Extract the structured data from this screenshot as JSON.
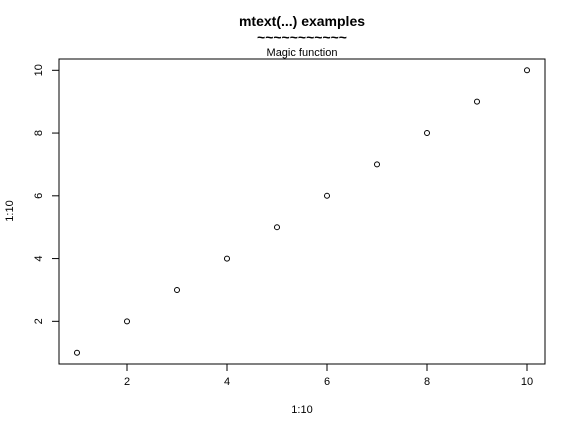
{
  "chart_data": {
    "type": "scatter",
    "title": "mtext(...) examples",
    "title_decoration": "~~~~~~~~~~~",
    "subtitle": "Magic function",
    "xlabel": "1:10",
    "ylabel": "1:10",
    "x": [
      1,
      2,
      3,
      4,
      5,
      6,
      7,
      8,
      9,
      10
    ],
    "y": [
      1,
      2,
      3,
      4,
      5,
      6,
      7,
      8,
      9,
      10
    ],
    "xlim": [
      0.64,
      10.36
    ],
    "ylim": [
      0.64,
      10.36
    ],
    "xticks": [
      "2",
      "4",
      "6",
      "8",
      "10"
    ],
    "yticks": [
      "2",
      "4",
      "6",
      "8",
      "10"
    ],
    "marker": "open-circle",
    "grid": false,
    "legend": "none",
    "colors": {
      "points": "#000000",
      "axes": "#000000",
      "background": "#ffffff"
    }
  }
}
